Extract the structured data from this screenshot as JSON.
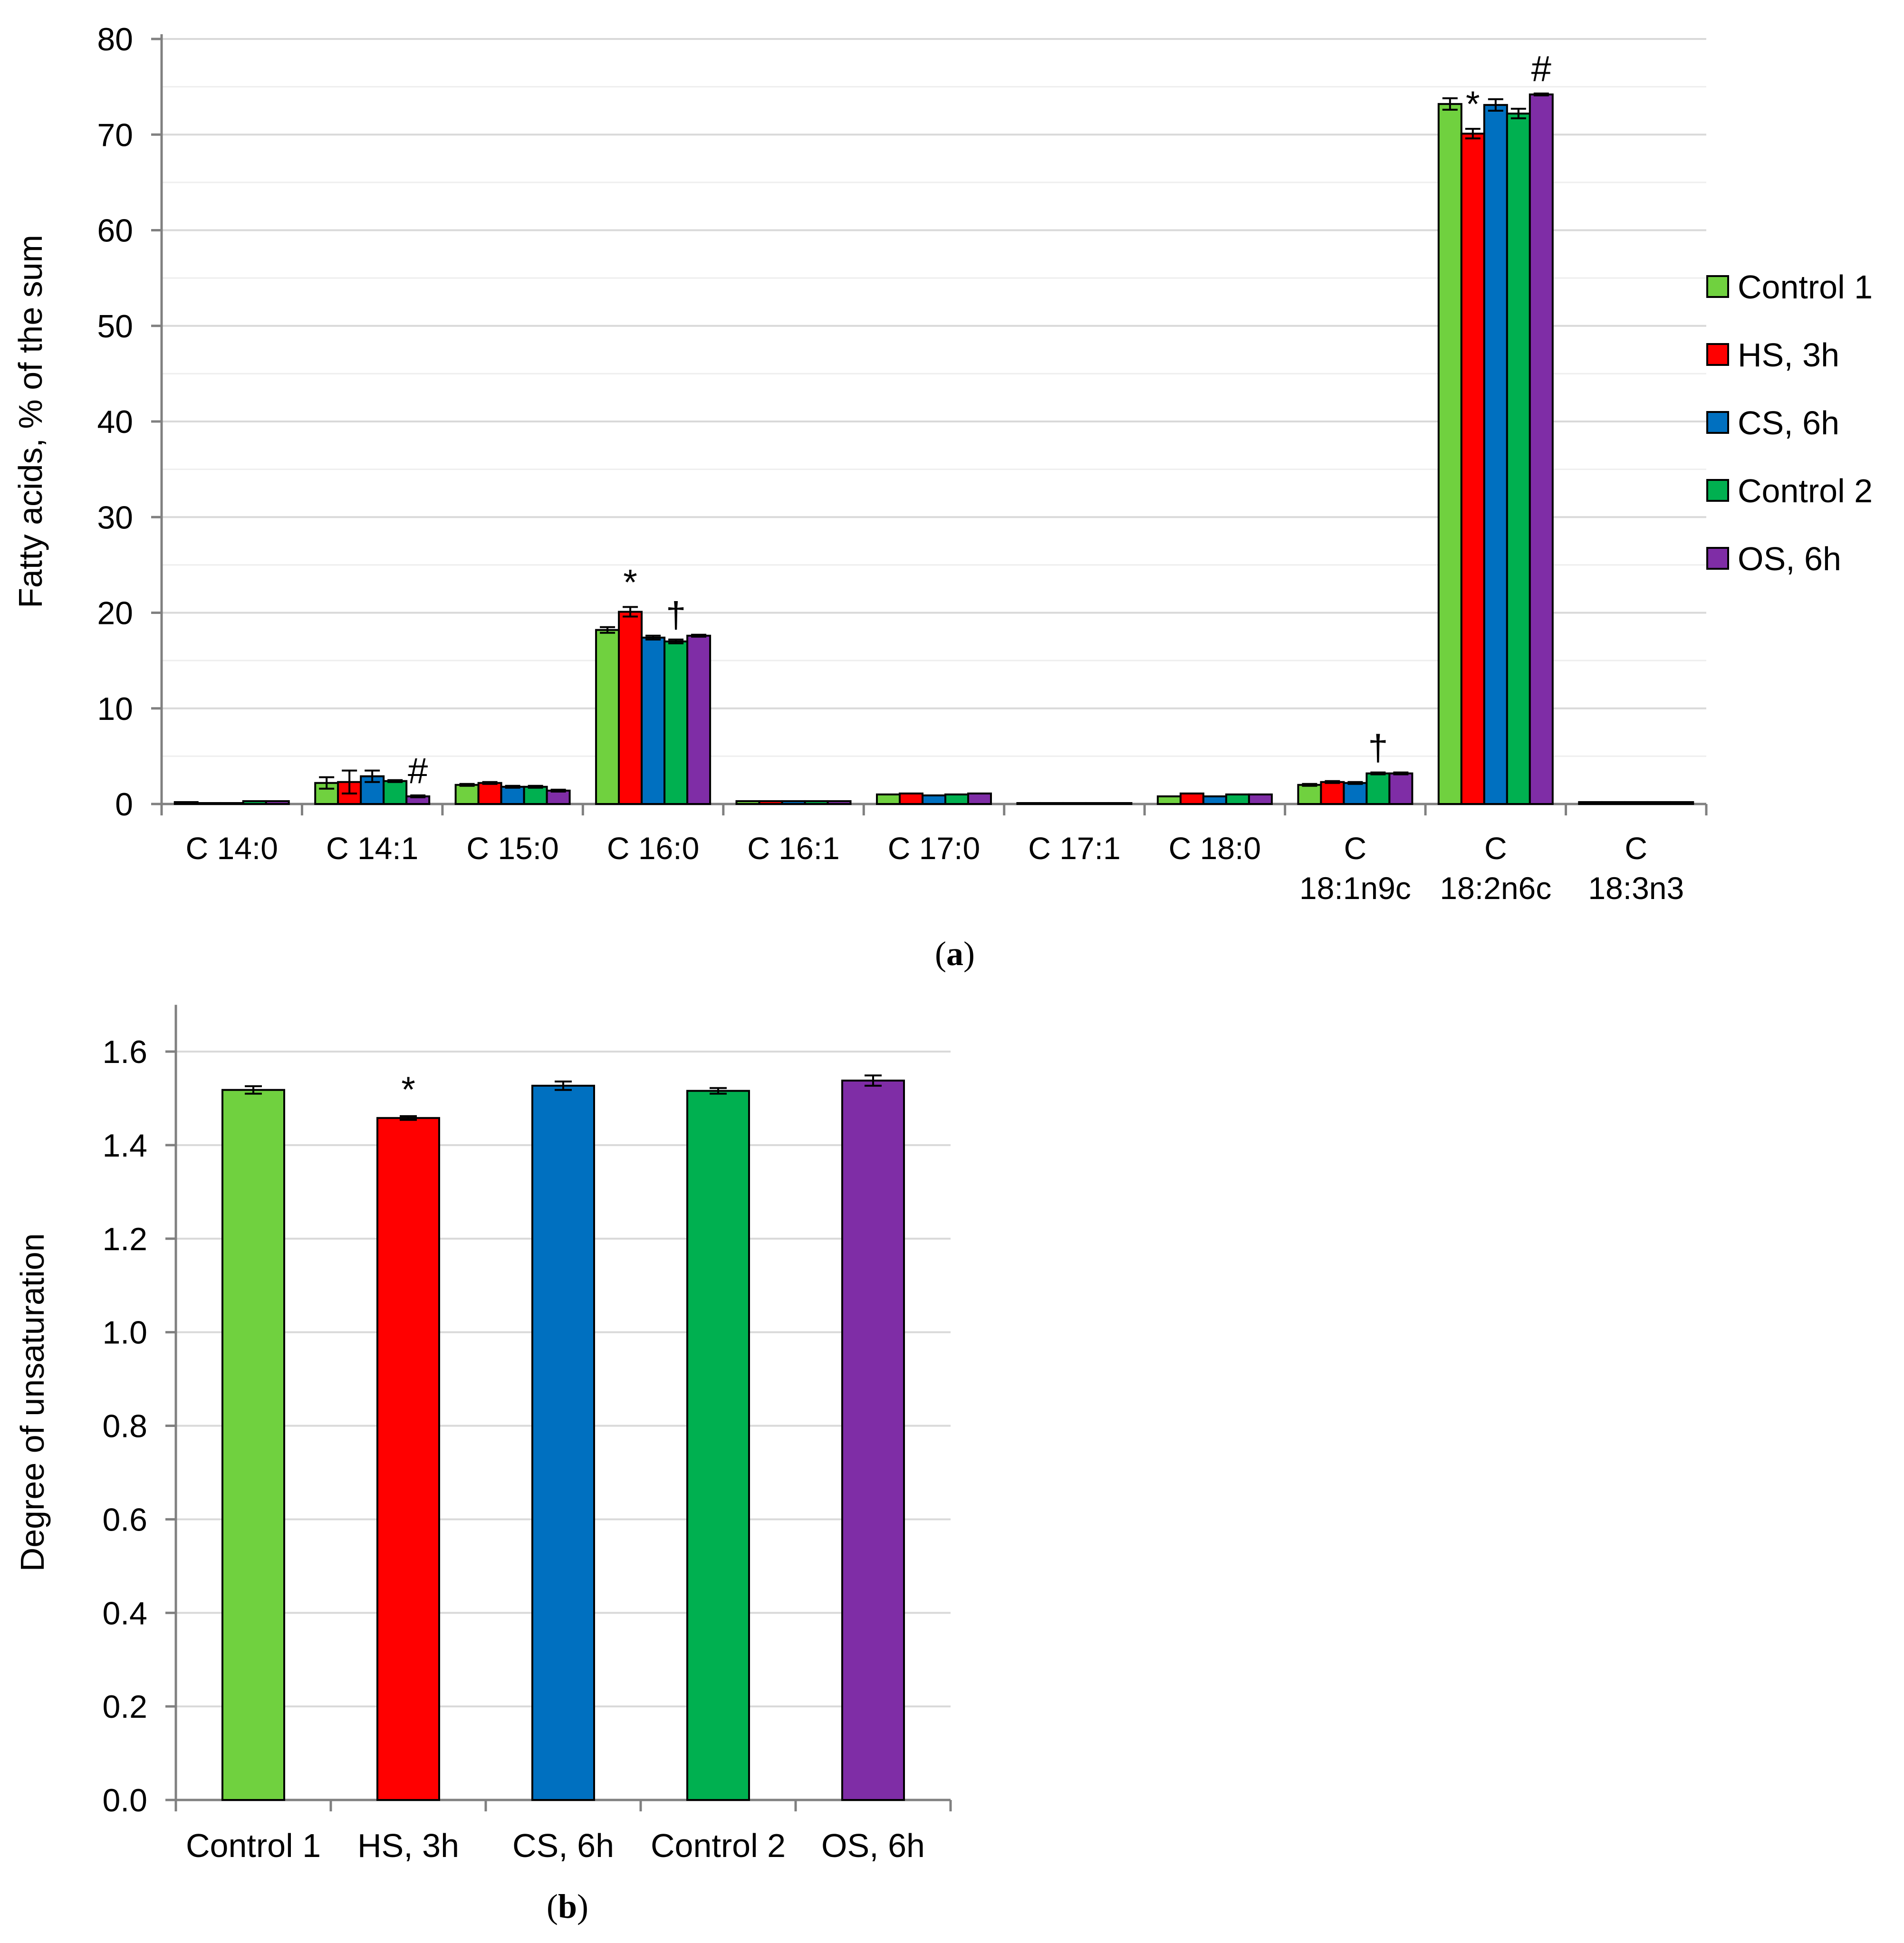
{
  "panels": {
    "a": {
      "label_open": "(",
      "label_letter": "a",
      "label_close": ")"
    },
    "b": {
      "label_open": "(",
      "label_letter": "b",
      "label_close": ")"
    }
  },
  "chart_data": [
    {
      "id": "a",
      "type": "bar",
      "title": "",
      "xlabel": "",
      "ylabel": "Fatty acids, % of the sum",
      "ylim": [
        0,
        80
      ],
      "yticks": [
        0,
        10,
        20,
        30,
        40,
        50,
        60,
        70,
        80
      ],
      "minor_grid_step": 5,
      "grid": true,
      "legend_position": "right",
      "categories": [
        [
          "C 14:0"
        ],
        [
          "C 14:1"
        ],
        [
          "C 15:0"
        ],
        [
          "C 16:0"
        ],
        [
          "C 16:1"
        ],
        [
          "C 17:0"
        ],
        [
          "C 17:1"
        ],
        [
          "C 18:0"
        ],
        [
          "C",
          "18:1n9c"
        ],
        [
          "C",
          "18:2n6c"
        ],
        [
          "C",
          "18:3n3"
        ]
      ],
      "series": [
        {
          "name": "Control 1",
          "color": "#70D13F",
          "values": [
            0.2,
            2.2,
            2.0,
            18.2,
            0.3,
            1.0,
            0.1,
            0.8,
            2.0,
            73.2,
            0.2
          ],
          "errors": [
            0.05,
            0.6,
            0.1,
            0.3,
            0.02,
            0.05,
            0.02,
            0.05,
            0.1,
            0.6,
            0.02
          ]
        },
        {
          "name": "HS, 3h",
          "color": "#FF0000",
          "values": [
            0.1,
            2.3,
            2.2,
            20.1,
            0.3,
            1.1,
            0.1,
            1.1,
            2.3,
            70.1,
            0.2
          ],
          "errors": [
            0.02,
            1.2,
            0.1,
            0.5,
            0.02,
            0.05,
            0.02,
            0.05,
            0.1,
            0.5,
            0.02
          ]
        },
        {
          "name": "CS, 6h",
          "color": "#0070C0",
          "values": [
            0.1,
            2.9,
            1.8,
            17.4,
            0.3,
            0.9,
            0.1,
            0.8,
            2.2,
            73.1,
            0.2
          ],
          "errors": [
            0.02,
            0.6,
            0.1,
            0.2,
            0.02,
            0.05,
            0.02,
            0.05,
            0.1,
            0.6,
            0.02
          ]
        },
        {
          "name": "Control 2",
          "color": "#00B050",
          "values": [
            0.3,
            2.4,
            1.8,
            17.0,
            0.3,
            1.0,
            0.1,
            1.0,
            3.2,
            72.2,
            0.2
          ],
          "errors": [
            0.05,
            0.1,
            0.1,
            0.2,
            0.02,
            0.05,
            0.02,
            0.05,
            0.1,
            0.5,
            0.02
          ]
        },
        {
          "name": "OS, 6h",
          "color": "#7F2DA6",
          "values": [
            0.3,
            0.8,
            1.4,
            17.6,
            0.3,
            1.1,
            0.1,
            1.0,
            3.2,
            74.2,
            0.2
          ],
          "errors": [
            0.05,
            0.1,
            0.1,
            0.1,
            0.02,
            0.05,
            0.02,
            0.05,
            0.1,
            0.1,
            0.02
          ]
        }
      ],
      "annotations": [
        {
          "text": "*",
          "category": 3,
          "series": 1
        },
        {
          "text": "†",
          "category": 3,
          "series": 3
        },
        {
          "text": "#",
          "category": 1,
          "series": 4
        },
        {
          "text": "†",
          "category": 8,
          "series": 3
        },
        {
          "text": "*",
          "category": 9,
          "series": 1
        },
        {
          "text": "#",
          "category": 9,
          "series": 4
        }
      ]
    },
    {
      "id": "b",
      "type": "bar",
      "title": "",
      "xlabel": "",
      "ylabel": "Degree of unsaturation",
      "ylim": [
        0,
        1.7
      ],
      "yticks": [
        "0.0",
        "0.2",
        "0.4",
        "0.6",
        "0.8",
        "1.0",
        "1.2",
        "1.4",
        "1.6"
      ],
      "grid": true,
      "legend_position": "none",
      "categories": [
        "Control 1",
        "HS, 3h",
        "CS, 6h",
        "Control 2",
        "OS, 6h"
      ],
      "colors": [
        "#70D13F",
        "#FF0000",
        "#0070C0",
        "#00B050",
        "#7F2DA6"
      ],
      "values": [
        1.518,
        1.458,
        1.527,
        1.516,
        1.538
      ],
      "errors": [
        0.008,
        0.004,
        0.009,
        0.006,
        0.011
      ],
      "annotations": [
        {
          "text": "*",
          "category": 1
        }
      ]
    }
  ]
}
